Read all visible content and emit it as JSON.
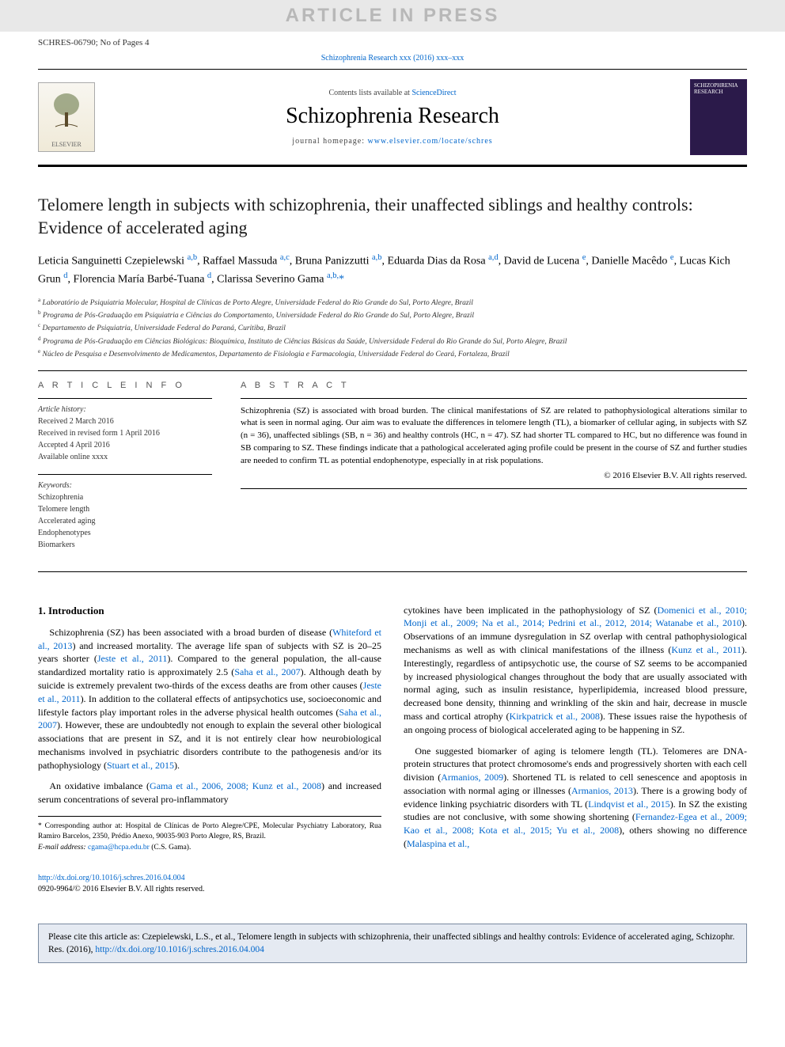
{
  "watermark": "ARTICLE IN PRESS",
  "header_id": "SCHRES-06790; No of Pages 4",
  "journal_ref_top": {
    "prefix": "Schizophrenia Research xxx (2016) xxx–xxx",
    "link_text": "Schizophrenia Research xxx (2016) xxx–xxx"
  },
  "masthead": {
    "contents_prefix": "Contents lists available at ",
    "contents_link": "ScienceDirect",
    "journal_title": "Schizophrenia Research",
    "homepage_prefix": "journal homepage: ",
    "homepage_link": "www.elsevier.com/locate/schres",
    "publisher_logo_label": "ELSEVIER",
    "cover_label": "SCHIZOPHRENIA RESEARCH"
  },
  "article": {
    "title": "Telomere length in subjects with schizophrenia, their unaffected siblings and healthy controls: Evidence of accelerated aging",
    "authors_html": "Leticia Sanguinetti Czepielewski <sup><a>a,b</a></sup>, Raffael Massuda <sup><a>a,c</a></sup>, Bruna Panizzutti <sup><a>a,b</a></sup>, Eduarda Dias da Rosa <sup><a>a,d</a></sup>, David de Lucena <sup><a>e</a></sup>, Danielle Macêdo <sup><a>e</a></sup>, Lucas Kich Grun <sup><a>d</a></sup>, Florencia María Barbé-Tuana <sup><a>d</a></sup>, Clarissa Severino Gama <sup><a>a,b,</a></sup><a>*</a>",
    "affiliations": [
      "a Laboratório de Psiquiatria Molecular, Hospital de Clínicas de Porto Alegre, Universidade Federal do Rio Grande do Sul, Porto Alegre, Brazil",
      "b Programa de Pós-Graduação em Psiquiatria e Ciências do Comportamento, Universidade Federal do Rio Grande do Sul, Porto Alegre, Brazil",
      "c Departamento de Psiquiatria, Universidade Federal do Paraná, Curitiba, Brazil",
      "d Programa de Pós-Graduação em Ciências Biológicas: Bioquímica, Instituto de Ciências Básicas da Saúde, Universidade Federal do Rio Grande do Sul, Porto Alegre, Brazil",
      "e Núcleo de Pesquisa e Desenvolvimento de Medicamentos, Departamento de Fisiologia e Farmacologia, Universidade Federal do Ceará, Fortaleza, Brazil"
    ]
  },
  "info": {
    "heading": "A R T I C L E   I N F O",
    "history_label": "Article history:",
    "history": [
      "Received 2 March 2016",
      "Received in revised form 1 April 2016",
      "Accepted 4 April 2016",
      "Available online xxxx"
    ],
    "keywords_label": "Keywords:",
    "keywords": [
      "Schizophrenia",
      "Telomere length",
      "Accelerated aging",
      "Endophenotypes",
      "Biomarkers"
    ]
  },
  "abstract": {
    "heading": "A B S T R A C T",
    "text": "Schizophrenia (SZ) is associated with broad burden. The clinical manifestations of SZ are related to pathophysiological alterations similar to what is seen in normal aging. Our aim was to evaluate the differences in telomere length (TL), a biomarker of cellular aging, in subjects with SZ (n = 36), unaffected siblings (SB, n = 36) and healthy controls (HC, n = 47). SZ had shorter TL compared to HC, but no difference was found in SB comparing to SZ. These findings indicate that a pathological accelerated aging profile could be present in the course of SZ and further studies are needed to confirm TL as potential endophenotype, especially in at risk populations.",
    "copyright": "© 2016 Elsevier B.V. All rights reserved."
  },
  "body": {
    "section_heading": "1. Introduction",
    "p1": "Schizophrenia (SZ) has been associated with a broad burden of disease (<a>Whiteford et al., 2013</a>) and increased mortality. The average life span of subjects with SZ is 20–25 years shorter (<a>Jeste et al., 2011</a>). Compared to the general population, the all-cause standardized mortality ratio is approximately 2.5 (<a>Saha et al., 2007</a>). Although death by suicide is extremely prevalent two-thirds of the excess deaths are from other causes (<a>Jeste et al., 2011</a>). In addition to the collateral effects of antipsychotics use, socioeconomic and lifestyle factors play important roles in the adverse physical health outcomes (<a>Saha et al., 2007</a>). However, these are undoubtedly not enough to explain the several other biological associations that are present in SZ, and it is not entirely clear how neurobiological mechanisms involved in psychiatric disorders contribute to the pathogenesis and/or its pathophysiology (<a>Stuart et al., 2015</a>).",
    "p2": "An oxidative imbalance (<a>Gama et al., 2006, 2008; Kunz et al., 2008</a>) and increased serum concentrations of several pro-inflammatory",
    "p3": "cytokines have been implicated in the pathophysiology of SZ (<a>Domenici et al., 2010; Monji et al., 2009; Na et al., 2014; Pedrini et al., 2012, 2014; Watanabe et al., 2010</a>). Observations of an immune dysregulation in SZ overlap with central pathophysiological mechanisms as well as with clinical manifestations of the illness (<a>Kunz et al., 2011</a>). Interestingly, regardless of antipsychotic use, the course of SZ seems to be accompanied by increased physiological changes throughout the body that are usually associated with normal aging, such as insulin resistance, hyperlipidemia, increased blood pressure, decreased bone density, thinning and wrinkling of the skin and hair, decrease in muscle mass and cortical atrophy (<a>Kirkpatrick et al., 2008</a>). These issues raise the hypothesis of an ongoing process of biological accelerated aging to be happening in SZ.",
    "p4": "One suggested biomarker of aging is telomere length (TL). Telomeres are DNA-protein structures that protect chromosome's ends and progressively shorten with each cell division (<a>Armanios, 2009</a>). Shortened TL is related to cell senescence and apoptosis in association with normal aging or illnesses (<a>Armanios, 2013</a>). There is a growing body of evidence linking psychiatric disorders with TL (<a>Lindqvist et al., 2015</a>). In SZ the existing studies are not conclusive, with some showing shortening (<a>Fernandez-Egea et al., 2009; Kao et al., 2008; Kota et al., 2015; Yu et al., 2008</a>), others showing no difference (<a>Malaspina et al.,</a>"
  },
  "footnote": {
    "corr_label": "* Corresponding author at: Hospital de Clínicas de Porto Alegre/CPE, Molecular Psychiatry Laboratory, Rua Ramiro Barcelos, 2350, Prédio Anexo, 90035-903 Porto Alegre, RS, Brazil.",
    "email_label": "E-mail address:",
    "email": "cgama@hcpa.edu.br",
    "email_suffix": "(C.S. Gama)."
  },
  "doi": {
    "link": "http://dx.doi.org/10.1016/j.schres.2016.04.004",
    "issn_line": "0920-9964/© 2016 Elsevier B.V. All rights reserved."
  },
  "cite_box": {
    "text_prefix": "Please cite this article as: Czepielewski, L.S., et al., Telomere length in subjects with schizophrenia, their unaffected siblings and healthy controls: Evidence of accelerated aging, Schizophr. Res. (2016), ",
    "link": "http://dx.doi.org/10.1016/j.schres.2016.04.004"
  },
  "colors": {
    "link": "#0066cc",
    "watermark_bg": "#e8e8e8",
    "watermark_fg": "#b8b8b8",
    "citebox_bg": "#e5eaf2",
    "citebox_border": "#7a8aa0",
    "cover_bg": "#2b1a4a"
  }
}
